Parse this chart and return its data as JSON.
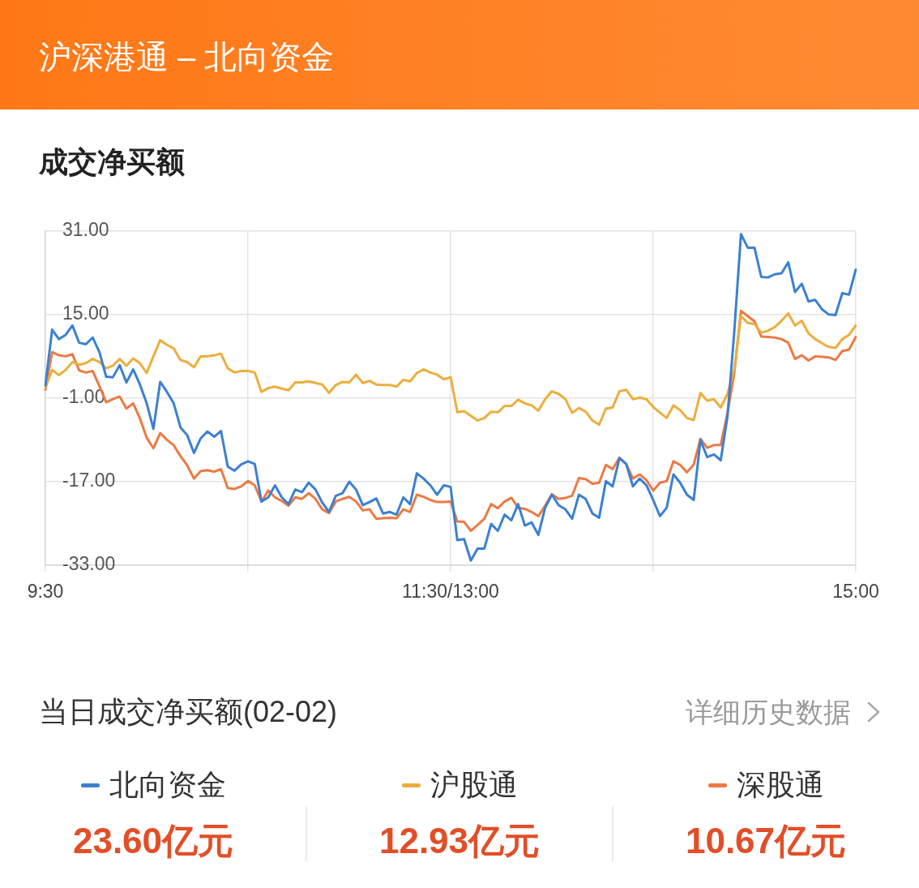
{
  "chart_data": {
    "type": "line",
    "title": "沪深港通 – 北向资金",
    "subtitle": "成交净买额",
    "legend_title": "当日成交净买额(02-02)",
    "annotations": [
      "详细历史数据",
      "23.60亿元",
      "12.93亿元",
      "10.67亿元"
    ],
    "categories": [
      "9:30",
      null,
      null,
      null,
      null,
      null,
      null,
      null,
      null,
      null,
      null,
      null,
      null,
      null,
      null,
      null,
      null,
      null,
      null,
      null,
      null,
      null,
      null,
      null,
      null,
      null,
      null,
      null,
      null,
      null,
      null,
      null,
      null,
      null,
      null,
      null,
      null,
      null,
      null,
      null,
      null,
      null,
      null,
      null,
      null,
      null,
      null,
      null,
      null,
      null,
      null,
      null,
      null,
      null,
      null,
      null,
      null,
      null,
      null,
      null,
      "11:30/13:00",
      null,
      null,
      null,
      null,
      null,
      null,
      null,
      null,
      null,
      null,
      null,
      null,
      null,
      null,
      null,
      null,
      null,
      null,
      null,
      null,
      null,
      null,
      null,
      null,
      null,
      null,
      null,
      null,
      null,
      null,
      null,
      null,
      null,
      null,
      null,
      null,
      null,
      null,
      null,
      null,
      null,
      null,
      null,
      null,
      null,
      null,
      null,
      null,
      null,
      null,
      null,
      null,
      null,
      null,
      null,
      null,
      null,
      null,
      null,
      "15:00"
    ],
    "ylim": [
      -33,
      31
    ],
    "yticks": [
      {
        "value": 31,
        "label": "31.00"
      },
      {
        "value": 15,
        "label": "15.00"
      },
      {
        "value": -1,
        "label": "-1.00"
      },
      {
        "value": -17,
        "label": "-17.00"
      },
      {
        "value": -33,
        "label": "-33.00"
      }
    ],
    "grid": true,
    "legend": "bottom",
    "line_style": "solid",
    "series": [
      {
        "name": "北向资金",
        "color": "#3c80d0",
        "values": [
          1.4,
          12.1,
          10.3,
          11.1,
          12.9,
          9.6,
          9.3,
          10.6,
          7.8,
          3.1,
          3.0,
          5.3,
          2.0,
          4.5,
          1.6,
          -2.0,
          -6.9,
          2.1,
          0.2,
          -2.0,
          -6.6,
          -8.1,
          -11.5,
          -8.7,
          -7.4,
          -8.4,
          -7.3,
          -14.1,
          -14.9,
          -13.7,
          -13.1,
          -13.6,
          -20.8,
          -20.0,
          -17.7,
          -20.0,
          -21.3,
          -18.5,
          -19.0,
          -17.2,
          -18.5,
          -21.0,
          -22.8,
          -19.7,
          -19.2,
          -17.0,
          -18.5,
          -21.5,
          -20.9,
          -20.2,
          -23.1,
          -22.8,
          -23.3,
          -20.0,
          -21.3,
          -15.4,
          -16.4,
          -17.7,
          -19.5,
          -17.7,
          -18.0,
          -28.2,
          -28.0,
          -32.1,
          -29.8,
          -29.8,
          -25.1,
          -26.4,
          -23.3,
          -24.4,
          -21.3,
          -25.4,
          -24.8,
          -27.2,
          -22.0,
          -19.5,
          -21.5,
          -22.3,
          -24.1,
          -19.5,
          -20.3,
          -23.1,
          -23.9,
          -16.9,
          -17.9,
          -12.5,
          -13.6,
          -17.9,
          -16.4,
          -17.7,
          -20.5,
          -23.6,
          -22.0,
          -15.6,
          -17.2,
          -19.5,
          -20.5,
          -9.0,
          -12.3,
          -11.8,
          -12.9,
          -4.5,
          11.6,
          30.4,
          27.8,
          27.8,
          22.2,
          22.1,
          22.7,
          22.9,
          25.0,
          19.3,
          20.9,
          17.5,
          17.8,
          16.0,
          15.0,
          14.9,
          19.1,
          18.8,
          23.6
        ]
      },
      {
        "name": "沪股通",
        "color": "#ecae3c",
        "values": [
          1.0,
          4.4,
          3.4,
          4.4,
          5.9,
          5.4,
          5.7,
          6.5,
          5.9,
          4.7,
          5.2,
          6.5,
          5.2,
          6.6,
          5.7,
          3.8,
          7.0,
          10.1,
          9.2,
          8.5,
          6.3,
          5.9,
          4.9,
          7.0,
          7.0,
          7.2,
          7.5,
          4.7,
          3.9,
          4.2,
          4.2,
          3.9,
          0.2,
          0.9,
          1.2,
          0.8,
          0.5,
          2.0,
          2.0,
          2.2,
          1.9,
          1.6,
          0.0,
          1.5,
          2.1,
          2.0,
          3.5,
          1.9,
          2.3,
          1.6,
          1.5,
          1.5,
          1.2,
          2.5,
          2.2,
          3.8,
          4.5,
          3.9,
          3.5,
          2.6,
          3.0,
          -3.7,
          -3.5,
          -4.4,
          -5.3,
          -4.8,
          -3.6,
          -3.7,
          -2.5,
          -2.5,
          -1.3,
          -2.0,
          -2.4,
          -3.4,
          -1.2,
          0.3,
          -0.2,
          -1.2,
          -3.8,
          -2.9,
          -3.6,
          -5.3,
          -6.1,
          -3.0,
          -2.8,
          0.3,
          0.6,
          -1.2,
          -0.9,
          -1.2,
          -2.7,
          -3.8,
          -4.8,
          -2.4,
          -3.3,
          -4.8,
          -5.2,
          0.0,
          -1.5,
          -1.2,
          -2.8,
          -0.2,
          4.4,
          14.7,
          13.4,
          13.2,
          11.5,
          11.9,
          12.6,
          13.8,
          15.2,
          12.9,
          13.8,
          11.4,
          10.3,
          9.5,
          8.8,
          8.6,
          10.3,
          11.1,
          12.9
        ]
      },
      {
        "name": "深股通",
        "color": "#ec7a44",
        "values": [
          0.6,
          7.8,
          7.2,
          7.0,
          7.4,
          4.3,
          3.9,
          4.2,
          1.3,
          -1.8,
          -1.2,
          -0.7,
          -3.0,
          -2.0,
          -4.9,
          -8.6,
          -10.6,
          -7.7,
          -9.0,
          -10.0,
          -12.1,
          -13.9,
          -16.4,
          -15.0,
          -14.8,
          -15.1,
          -14.6,
          -18.2,
          -18.4,
          -17.9,
          -16.9,
          -17.7,
          -20.8,
          -18.7,
          -20.0,
          -20.7,
          -21.6,
          -20.0,
          -20.3,
          -19.2,
          -20.3,
          -22.3,
          -23.0,
          -20.8,
          -20.3,
          -19.9,
          -20.8,
          -22.5,
          -22.3,
          -24.1,
          -24.0,
          -23.9,
          -24.0,
          -22.3,
          -22.8,
          -19.5,
          -19.9,
          -20.5,
          -20.9,
          -20.9,
          -20.8,
          -24.6,
          -24.7,
          -26.4,
          -25.3,
          -24.1,
          -21.3,
          -22.1,
          -20.8,
          -20.1,
          -22.0,
          -22.2,
          -22.8,
          -23.6,
          -21.6,
          -19.4,
          -20.3,
          -20.1,
          -19.7,
          -16.3,
          -16.5,
          -17.4,
          -17.2,
          -13.8,
          -14.6,
          -12.4,
          -13.6,
          -16.4,
          -15.6,
          -16.7,
          -18.7,
          -17.2,
          -16.9,
          -13.1,
          -13.8,
          -15.2,
          -13.7,
          -8.8,
          -10.5,
          -10.0,
          -10.0,
          -3.8,
          3.7,
          15.7,
          14.7,
          13.7,
          10.8,
          10.7,
          10.6,
          10.3,
          9.6,
          6.5,
          7.2,
          6.2,
          7.0,
          6.9,
          6.8,
          6.3,
          8.0,
          8.3,
          10.7
        ]
      }
    ]
  }
}
